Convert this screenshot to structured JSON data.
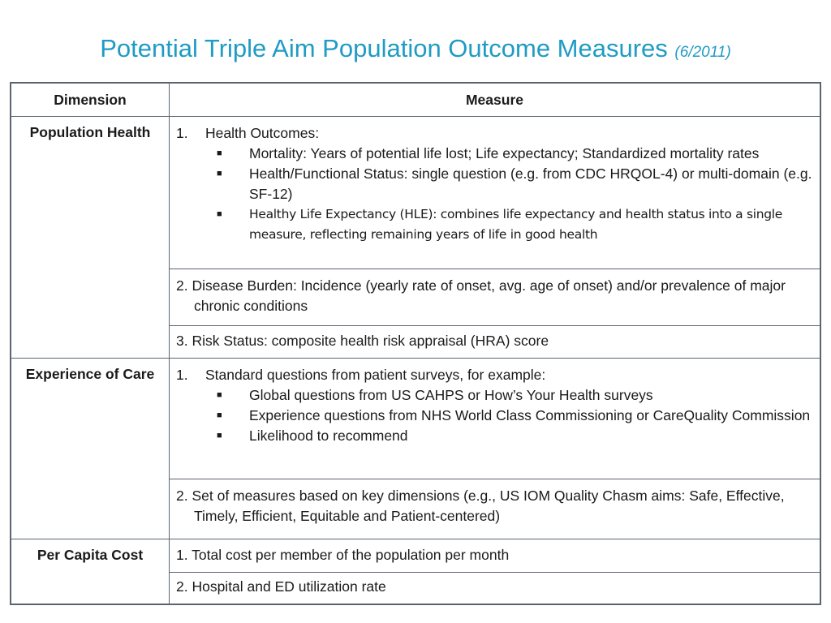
{
  "title": {
    "main": "Potential Triple Aim Population Outcome Measures",
    "date": "(6/2011)"
  },
  "table": {
    "headers": {
      "dimension": "Dimension",
      "measure": "Measure"
    },
    "population_health": {
      "label": "Population Health",
      "item1": {
        "num": "1.",
        "text": "Health Outcomes:",
        "bullets": [
          "Mortality: Years of potential life lost; Life expectancy; Standardized mortality rates",
          "Health/Functional Status: single question (e.g. from CDC HRQOL-4) or multi-domain (e.g. SF-12)",
          "Healthy Life Expectancy (HLE): combines life expectancy and health status into a single measure, reflecting remaining years of life in good health"
        ]
      },
      "item2": "2. Disease Burden: Incidence (yearly rate of onset, avg. age of onset) and/or prevalence of major chronic conditions",
      "item3": "3. Risk Status: composite health risk appraisal (HRA) score"
    },
    "experience_of_care": {
      "label": "Experience of Care",
      "item1": {
        "num": "1.",
        "text": "Standard questions from patient surveys, for example:",
        "bullets": [
          "Global questions from US CAHPS or How’s Your Health surveys",
          "Experience questions from NHS World Class Commissioning or CareQuality Commission",
          "Likelihood to recommend"
        ]
      },
      "item2": "2. Set of measures based on key dimensions (e.g., US IOM Quality Chasm aims: Safe, Effective, Timely, Efficient, Equitable and Patient-centered)"
    },
    "per_capita_cost": {
      "label": "Per Capita Cost",
      "item1": "1. Total cost per member of the population per month",
      "item2": "2. Hospital and ED utilization rate"
    }
  },
  "bullet_glyph": "■",
  "colors": {
    "title": "#1f9bc4",
    "border": "#5a6470"
  }
}
